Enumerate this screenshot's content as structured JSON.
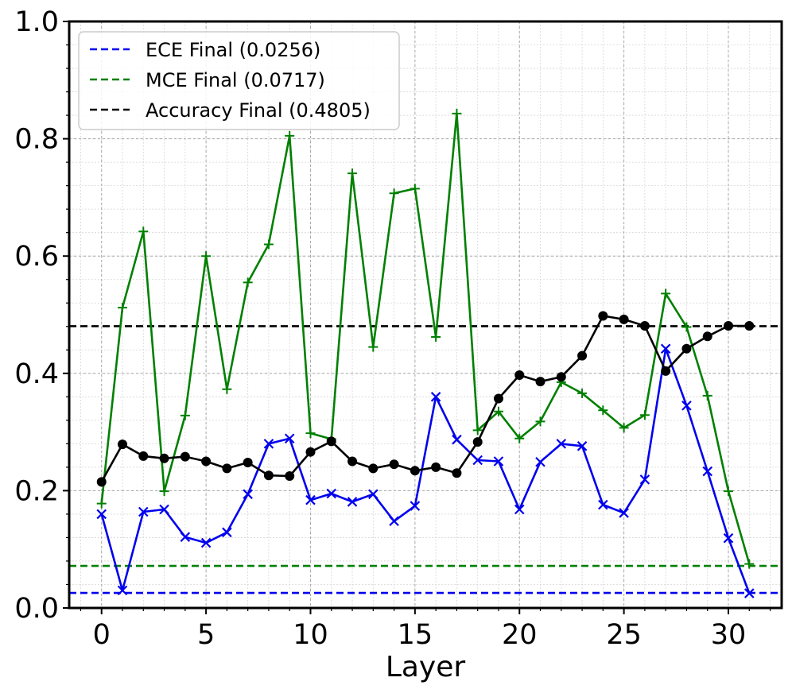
{
  "chart_data": {
    "type": "line",
    "xlabel": "Layer",
    "ylabel": "",
    "xlim": [
      -1.55,
      32.55
    ],
    "ylim": [
      0.0,
      1.0
    ],
    "xticks": [
      0,
      5,
      10,
      15,
      20,
      25,
      30
    ],
    "yticks": [
      0.0,
      0.2,
      0.4,
      0.6,
      0.8,
      1.0
    ],
    "grid": true,
    "legend_position": "top-left",
    "x": [
      0,
      1,
      2,
      3,
      4,
      5,
      6,
      7,
      8,
      9,
      10,
      11,
      12,
      13,
      14,
      15,
      16,
      17,
      18,
      19,
      20,
      21,
      22,
      23,
      24,
      25,
      26,
      27,
      28,
      29,
      30,
      31
    ],
    "series": [
      {
        "key": "ece",
        "marker": "x",
        "color": "#0000ee",
        "values": [
          0.16,
          0.03,
          0.164,
          0.168,
          0.121,
          0.111,
          0.129,
          0.194,
          0.28,
          0.289,
          0.184,
          0.195,
          0.181,
          0.194,
          0.148,
          0.174,
          0.36,
          0.287,
          0.252,
          0.25,
          0.168,
          0.249,
          0.28,
          0.276,
          0.176,
          0.162,
          0.219,
          0.442,
          0.345,
          0.233,
          0.119,
          0.025
        ]
      },
      {
        "key": "mce",
        "marker": "+",
        "color": "#008000",
        "values": [
          0.178,
          0.512,
          0.642,
          0.199,
          0.328,
          0.6,
          0.373,
          0.555,
          0.62,
          0.805,
          0.298,
          0.288,
          0.741,
          0.445,
          0.707,
          0.715,
          0.462,
          0.843,
          0.303,
          0.335,
          0.289,
          0.318,
          0.385,
          0.366,
          0.337,
          0.307,
          0.329,
          0.536,
          0.479,
          0.362,
          0.199,
          0.075
        ]
      },
      {
        "key": "acc",
        "marker": "o",
        "color": "#000000",
        "values": [
          0.215,
          0.279,
          0.259,
          0.255,
          0.258,
          0.25,
          0.238,
          0.248,
          0.226,
          0.225,
          0.266,
          0.284,
          0.25,
          0.238,
          0.245,
          0.234,
          0.24,
          0.23,
          0.283,
          0.357,
          0.397,
          0.386,
          0.394,
          0.43,
          0.498,
          0.492,
          0.481,
          0.404,
          0.442,
          0.463,
          0.481,
          0.481
        ]
      }
    ],
    "hlines": [
      {
        "key": "ece_final",
        "label": "ECE Final (0.0256)",
        "y": 0.0256,
        "color": "#0000ee"
      },
      {
        "key": "mce_final",
        "label": "MCE Final (0.0717)",
        "y": 0.0717,
        "color": "#008000"
      },
      {
        "key": "acc_final",
        "label": "Accuracy Final (0.4805)",
        "y": 0.4805,
        "color": "#000000"
      }
    ]
  }
}
